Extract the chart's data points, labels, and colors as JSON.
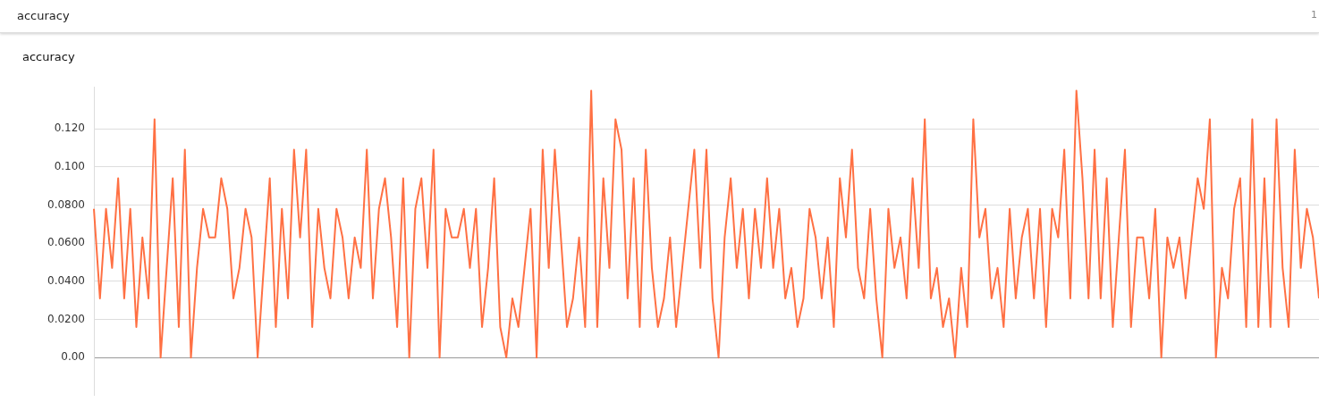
{
  "chart_data": {
    "type": "line",
    "title": "accuracy",
    "annotations": [
      "accuracy",
      "1"
    ],
    "categories": [
      null,
      null,
      null,
      null,
      null,
      null,
      null,
      null,
      null,
      null,
      null,
      null,
      null,
      null,
      null,
      null,
      null,
      null,
      null,
      null,
      null,
      null,
      null,
      null,
      null,
      null,
      null,
      null,
      null,
      null,
      null,
      null,
      null,
      null,
      null,
      null,
      null,
      null,
      null,
      null,
      null,
      null,
      null,
      null,
      null,
      null,
      null,
      null,
      null,
      null,
      null,
      null,
      null,
      null,
      null,
      null,
      null,
      null,
      null,
      null,
      null,
      null,
      null,
      null,
      null,
      null,
      null,
      null,
      null,
      null,
      null,
      null,
      null,
      null,
      null,
      null,
      null,
      null,
      null,
      null,
      null,
      null,
      null,
      null,
      null,
      null,
      null,
      null,
      null,
      null,
      null,
      null,
      null,
      null,
      null,
      null,
      null,
      null,
      null,
      null,
      null,
      null,
      null,
      null,
      null,
      null,
      null,
      null,
      null,
      null,
      null,
      null,
      null,
      null,
      null,
      null,
      null,
      null,
      null,
      null,
      null,
      null,
      null,
      null,
      null,
      null,
      null,
      null,
      null,
      null,
      null,
      null,
      null,
      null,
      null,
      null,
      null,
      null,
      null,
      null,
      null,
      null,
      null,
      null,
      null,
      null,
      null,
      null,
      null,
      null,
      null,
      null,
      null,
      null,
      null,
      null,
      null,
      null,
      null,
      null,
      null,
      null,
      null,
      null,
      null,
      null,
      null,
      null,
      null,
      null,
      null,
      null,
      null,
      null,
      null,
      null,
      null,
      null,
      null,
      null,
      null,
      null,
      null,
      null,
      null,
      null,
      null,
      null,
      null,
      null,
      null,
      null,
      null,
      null,
      null,
      null,
      null,
      null,
      null,
      null,
      null,
      null,
      null
    ],
    "ylim": [
      -0.02,
      0.142
    ],
    "yticks": [
      {
        "value": 0,
        "label": "0.00"
      },
      {
        "value": 0.02,
        "label": "0.0200"
      },
      {
        "value": 0.04,
        "label": "0.0400"
      },
      {
        "value": 0.06,
        "label": "0.0600"
      },
      {
        "value": 0.08,
        "label": "0.0800"
      },
      {
        "value": 0.1,
        "label": "0.100"
      },
      {
        "value": 0.12,
        "label": "0.120"
      }
    ],
    "tick_labels": "y",
    "grid": "y",
    "legend": false,
    "marker": "none",
    "line_style": "solid",
    "series": [
      {
        "color": "#ff7043",
        "values": [
          0.078,
          0.031,
          0.078,
          0.047,
          0.094,
          0.031,
          0.078,
          0.016,
          0.063,
          0.031,
          0.125,
          0,
          0.047,
          0.094,
          0.016,
          0.109,
          0,
          0.047,
          0.078,
          0.063,
          0.063,
          0.094,
          0.078,
          0.031,
          0.047,
          0.078,
          0.063,
          0,
          0.047,
          0.094,
          0.016,
          0.078,
          0.031,
          0.109,
          0.063,
          0.109,
          0.016,
          0.078,
          0.047,
          0.031,
          0.078,
          0.063,
          0.031,
          0.063,
          0.047,
          0.109,
          0.031,
          0.078,
          0.094,
          0.063,
          0.016,
          0.094,
          0,
          0.078,
          0.094,
          0.047,
          0.109,
          0,
          0.078,
          0.063,
          0.063,
          0.078,
          0.047,
          0.078,
          0.016,
          0.047,
          0.094,
          0.016,
          0,
          0.031,
          0.016,
          0.047,
          0.078,
          0,
          0.109,
          0.047,
          0.109,
          0.063,
          0.016,
          0.031,
          0.063,
          0.016,
          0.14,
          0.016,
          0.094,
          0.047,
          0.125,
          0.109,
          0.031,
          0.094,
          0.016,
          0.109,
          0.047,
          0.016,
          0.031,
          0.063,
          0.016,
          0.047,
          0.078,
          0.109,
          0.047,
          0.109,
          0.031,
          0,
          0.063,
          0.094,
          0.047,
          0.078,
          0.031,
          0.078,
          0.047,
          0.094,
          0.047,
          0.078,
          0.031,
          0.047,
          0.016,
          0.031,
          0.078,
          0.063,
          0.031,
          0.063,
          0.016,
          0.094,
          0.063,
          0.109,
          0.047,
          0.031,
          0.078,
          0.031,
          0,
          0.078,
          0.047,
          0.063,
          0.031,
          0.094,
          0.047,
          0.125,
          0.031,
          0.047,
          0.016,
          0.031,
          0,
          0.047,
          0.016,
          0.125,
          0.063,
          0.078,
          0.031,
          0.047,
          0.016,
          0.078,
          0.031,
          0.063,
          0.078,
          0.031,
          0.078,
          0.016,
          0.078,
          0.063,
          0.109,
          0.031,
          0.14,
          0.094,
          0.031,
          0.109,
          0.031,
          0.094,
          0.016,
          0.063,
          0.109,
          0.016,
          0.063,
          0.063,
          0.031,
          0.078,
          0,
          0.063,
          0.047,
          0.063,
          0.031,
          0.063,
          0.094,
          0.078,
          0.125,
          0,
          0.047,
          0.031,
          0.078,
          0.094,
          0.016,
          0.125,
          0.016,
          0.094,
          0.016,
          0.125,
          0.047,
          0.016,
          0.109,
          0.047,
          0.078,
          0.063,
          0.031
        ]
      }
    ]
  }
}
